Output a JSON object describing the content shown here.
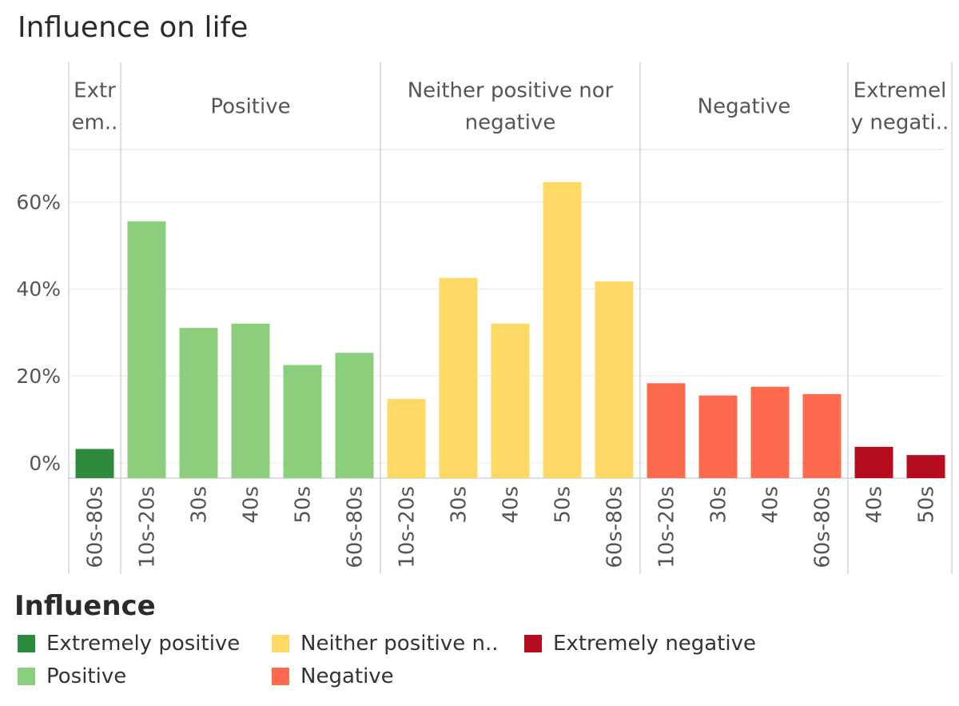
{
  "title": "Influence on life",
  "legend": {
    "title": "Influence",
    "items": [
      {
        "label": "Extremely positive",
        "color": "#2e8b3e"
      },
      {
        "label": "Neither positive n..",
        "color": "#fed966"
      },
      {
        "label": "Extremely negative",
        "color": "#b50c1e"
      },
      {
        "label": "Positive",
        "color": "#8bcf7d"
      },
      {
        "label": "Negative",
        "color": "#fe6a4d"
      }
    ]
  },
  "chart_data": {
    "type": "bar",
    "title": "Influence on life",
    "ylabel": "",
    "ylim": [
      -3.5,
      72
    ],
    "yticks": [
      0,
      20,
      40,
      60
    ],
    "ytick_labels": [
      "0%",
      "20%",
      "40%",
      "60%"
    ],
    "panels": [
      {
        "header": [
          "Extr",
          "em.."
        ],
        "category": "Extremely positive",
        "color": "#2e8b3e",
        "bars": [
          {
            "label": "60s-80s",
            "value": 3.2
          }
        ]
      },
      {
        "header": [
          "Positive"
        ],
        "category": "Positive",
        "color": "#8bcf7d",
        "bars": [
          {
            "label": "10s-20s",
            "value": 55.5
          },
          {
            "label": "30s",
            "value": 31
          },
          {
            "label": "40s",
            "value": 32
          },
          {
            "label": "50s",
            "value": 22.5
          },
          {
            "label": "60s-80s",
            "value": 25.3
          }
        ]
      },
      {
        "header": [
          "Neither positive nor",
          "negative"
        ],
        "category": "Neither positive nor negative",
        "color": "#fed966",
        "bars": [
          {
            "label": "10s-20s",
            "value": 14.7
          },
          {
            "label": "30s",
            "value": 42.5
          },
          {
            "label": "40s",
            "value": 32
          },
          {
            "label": "50s",
            "value": 64.5
          },
          {
            "label": "60s-80s",
            "value": 41.7
          }
        ]
      },
      {
        "header": [
          "Negative"
        ],
        "category": "Negative",
        "color": "#fe6a4d",
        "bars": [
          {
            "label": "10s-20s",
            "value": 18.3
          },
          {
            "label": "30s",
            "value": 15.5
          },
          {
            "label": "40s",
            "value": 17.5
          },
          {
            "label": "60s-80s",
            "value": 15.8
          }
        ]
      },
      {
        "header": [
          "Extremel",
          "y negati.."
        ],
        "category": "Extremely negative",
        "color": "#b50c1e",
        "bars": [
          {
            "label": "40s",
            "value": 3.7
          },
          {
            "label": "50s",
            "value": 1.8
          }
        ]
      }
    ]
  }
}
